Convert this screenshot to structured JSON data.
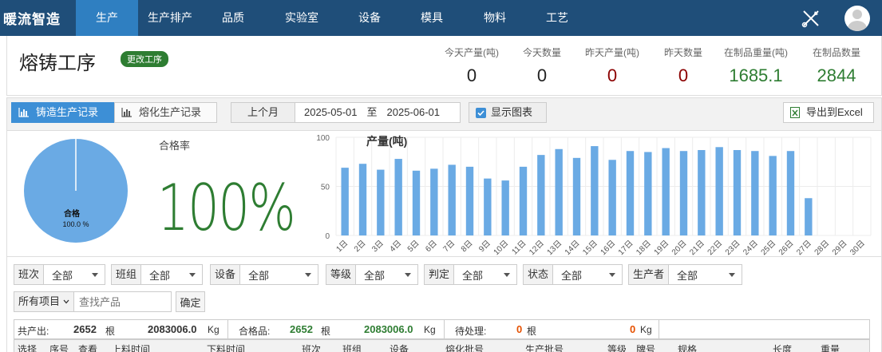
{
  "brand": "暖流智造",
  "nav": [
    "生产",
    "生产排产",
    "品质",
    "实验室",
    "设备",
    "模具",
    "物料",
    "工艺"
  ],
  "header": {
    "title": "熔铸工序",
    "change_btn": "更改工序",
    "stats": [
      {
        "label": "今天产量(吨)",
        "value": "0",
        "color": "#222222"
      },
      {
        "label": "今天数量",
        "value": "0",
        "color": "#222222"
      },
      {
        "label": "昨天产量(吨)",
        "value": "0",
        "color": "#8b0000"
      },
      {
        "label": "昨天数量",
        "value": "0",
        "color": "#8b0000"
      },
      {
        "label": "在制品重量(吨)",
        "value": "1685.1",
        "color": "#2e7d32"
      },
      {
        "label": "在制品数量",
        "value": "2844",
        "color": "#2e7d32"
      }
    ]
  },
  "toolbar": {
    "tab1": "铸造生产记录",
    "tab2": "熔化生产记录",
    "prev_month": "上个月",
    "date_from": "2025-05-01",
    "date_sep": "至",
    "date_to": "2025-06-01",
    "show_chart": "显示图表",
    "export": "导出到Excel"
  },
  "rate": {
    "label": "合格率",
    "value": "100%"
  },
  "pie": {
    "label": "合格",
    "pct": "100.0 %"
  },
  "chart_data": {
    "type": "bar",
    "title": "产量(吨)",
    "ylim": [
      0,
      100
    ],
    "yticks": [
      "100",
      "50",
      "0"
    ],
    "categories": [
      "1日",
      "2日",
      "3日",
      "4日",
      "5日",
      "6日",
      "7日",
      "8日",
      "9日",
      "10日",
      "11日",
      "12日",
      "13日",
      "14日",
      "15日",
      "16日",
      "17日",
      "18日",
      "19日",
      "20日",
      "21日",
      "22日",
      "23日",
      "24日",
      "25日",
      "26日",
      "27日",
      "28日",
      "29日",
      "30日"
    ],
    "values": [
      69,
      73,
      67,
      78,
      66,
      68,
      72,
      70,
      58,
      56,
      70,
      82,
      88,
      79,
      91,
      77,
      86,
      85,
      89,
      86,
      87,
      90,
      87,
      86,
      81,
      86,
      38,
      0,
      0,
      0
    ]
  },
  "filters": {
    "row1": [
      {
        "label": "班次",
        "value": "全部"
      },
      {
        "label": "班组",
        "value": "全部"
      },
      {
        "label": "设备",
        "value": "全部"
      },
      {
        "label": "等级",
        "value": "全部"
      },
      {
        "label": "判定",
        "value": "全部"
      },
      {
        "label": "状态",
        "value": "全部"
      },
      {
        "label": "生产者",
        "value": "全部"
      }
    ],
    "all_items": "所有项目",
    "search_placeholder": "查找产品",
    "confirm": "确定"
  },
  "summary": {
    "total_label": "共产出:",
    "total_count": "2652",
    "unit_gen": "根",
    "total_weight": "2083006.0",
    "unit_kg": "Kg",
    "ok_label": "合格品:",
    "ok_count": "2652",
    "ok_weight": "2083006.0",
    "pending_label": "待处理:",
    "pending_count": "0",
    "pending_weight": "0"
  },
  "table_headers": [
    "选择",
    "序号",
    "查看",
    "上料时间",
    "下料时间",
    "班次",
    "班组",
    "设备",
    "熔化批号",
    "生产批号",
    "等级",
    "牌号",
    "规格",
    "长度",
    "重量"
  ]
}
